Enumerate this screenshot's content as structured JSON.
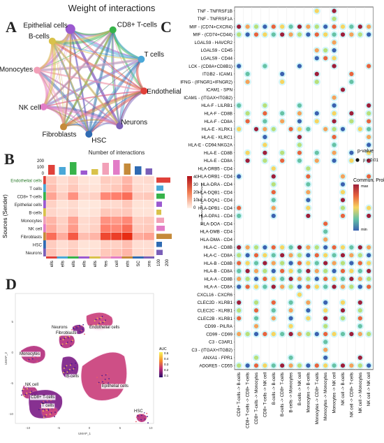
{
  "panels": {
    "a": {
      "letter": "A",
      "title": "Weight of interactions",
      "nodes": [
        {
          "name": "Epithelial cells",
          "color": "#9b59d0"
        },
        {
          "name": "CD8+ T-cells",
          "color": "#37b34a"
        },
        {
          "name": "T cells",
          "color": "#4aa8d8"
        },
        {
          "name": "Endothelial cells",
          "color": "#e0413a"
        },
        {
          "name": "Neurons",
          "color": "#7a5fb8"
        },
        {
          "name": "HSC",
          "color": "#2f6bb3"
        },
        {
          "name": "Fibroblasts",
          "color": "#c58a3a"
        },
        {
          "name": "NK cell",
          "color": "#e27cc7"
        },
        {
          "name": "Monocytes",
          "color": "#f2a0b8"
        },
        {
          "name": "B-cells",
          "color": "#d9c24a"
        }
      ]
    },
    "b": {
      "letter": "B",
      "top_label": "Number of interactions",
      "y_axis_label": "Sources (Sender)",
      "legend_title": "Number of interactions",
      "legend_ticks": [
        "40",
        "30",
        "20",
        "10",
        "0"
      ],
      "top_ticks": [
        "200",
        "100",
        "0"
      ],
      "right_ticks": [
        "100",
        "200"
      ],
      "rows": [
        "Endothelial cells",
        "T cells",
        "CD8+ T-cells",
        "Epithelial cells",
        "B-cells",
        "Monocytes",
        "NK cell",
        "Fibroblasts",
        "HSC",
        "Neurons"
      ],
      "cols": [
        "Endothelial cells",
        "T cells",
        "CD8+ T-cells",
        "Epithelial cells",
        "B-cells",
        "Monocytes",
        "NK cell",
        "Fibroblasts",
        "HSC",
        "Neurons"
      ],
      "colors": [
        "#e0413a",
        "#4aa8d8",
        "#37b34a",
        "#9b59d0",
        "#d9c24a",
        "#f2a0b8",
        "#e27cc7",
        "#c58a3a",
        "#2f6bb3",
        "#7a5fb8"
      ]
    },
    "c": {
      "letter": "C",
      "pvalue_title": "p-value",
      "pvalue_item": "p < 0.01",
      "prob_title": "Commun. Prob.",
      "prob_max": "max",
      "prob_min": "min",
      "ligand_receptor": [
        "TNF - TNFRSF1B",
        "TNF - TNFRSF1A",
        "MIF - (CD74+CXCR4)",
        "MIF - (CD74+CD44)",
        "LGALS9 - HAVCR2",
        "LGALS9 - CD45",
        "LGALS9 - CD44",
        "LCK - (CD8A+CD8B1)",
        "ITGB2 - ICAM1",
        "IFNG - (IFNGR1+IFNGR2)",
        "ICAM1 - SPN",
        "ICAM1 - (ITGAX+ITGB2)",
        "HLA-F - LILRB1",
        "HLA-F - CD8B",
        "HLA-F - CD8A",
        "HLA-E - KLRK1",
        "HLA-E - KLRC1",
        "HLA-E - CD94:NKG2A",
        "HLA-E - CD8B",
        "HLA-E - CD8A",
        "HLA-DRB5 - CD4",
        "HLA-DRB1 - CD4",
        "HLA-DRA - CD4",
        "HLA-DQB1 - CD4",
        "HLA-DQA1 - CD4",
        "HLA-DPB1 - CD4",
        "HLA-DPA1 - CD4",
        "HLA-DOA - CD4",
        "HLA-DMB - CD4",
        "HLA-DMA - CD4",
        "HLA-C - CD8B",
        "HLA-C - CD8A",
        "HLA-B - CD8B",
        "HLA-B - CD8A",
        "HLA-A - CD8B",
        "HLA-A - CD8A",
        "CXCL16 - CXCR6",
        "CLEC2D - KLRB1",
        "CLEC2C - KLRB1",
        "CLEC2B - KLRB1",
        "CD99 - PILRA",
        "CD99 - CD99",
        "C3 - C3AR1",
        "C3 - (ITGAX+ITGB2)",
        "ANXA1 - FPR1",
        "ADGRE5 - CD55"
      ],
      "pairs": [
        "CD8+ T-cells -> B-cells",
        "CD8+ T-cells -> CD8+ T-cells",
        "CD8+ T-cells -> Monocytes",
        "CD8+ T-cells -> NK cell",
        "B-cells -> B-cells",
        "B-cells -> CD8+ T-cells",
        "B-cells -> Monocytes",
        "B-cells -> NK cell",
        "Monocytes -> B-cells",
        "Monocytes -> CD8+ T-cells",
        "Monocytes -> Monocytes",
        "Monocytes -> NK cell",
        "NK cell -> B-cells",
        "NK cell -> CD8+ T-cells",
        "NK cell -> Monocytes",
        "NK cell -> NK cell"
      ]
    },
    "d": {
      "letter": "D",
      "x_label": "UMAP_1",
      "y_label": "UMAP_2",
      "legend_title": "AUC",
      "legend_ticks": [
        "0.5",
        "0.4",
        "0.3",
        "0.2",
        "0.1"
      ],
      "x_ticks": [
        "-10",
        "-5",
        "0",
        "5",
        "10"
      ],
      "y_ticks": [
        "5",
        "0",
        "-5",
        "-10"
      ],
      "clusters": [
        {
          "name": "Fibroblasts"
        },
        {
          "name": "Neurons"
        },
        {
          "name": "Endothelial cells"
        },
        {
          "name": "Monocytes"
        },
        {
          "name": "B-cells"
        },
        {
          "name": "Epithelial cells"
        },
        {
          "name": "NK cell"
        },
        {
          "name": "CD8+ T-cells"
        },
        {
          "name": "T cells"
        },
        {
          "name": "HSC"
        }
      ]
    }
  }
}
